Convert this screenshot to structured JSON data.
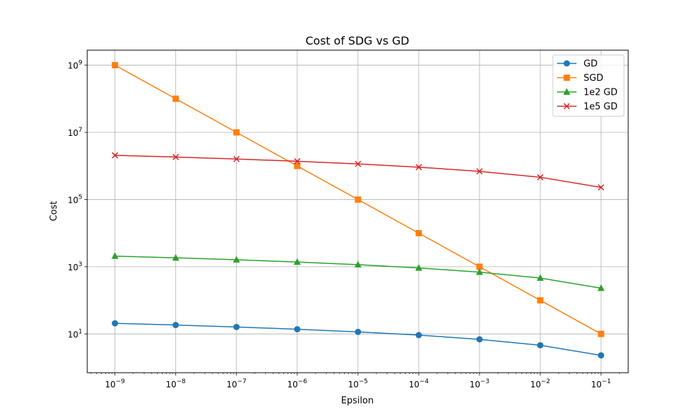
{
  "chart_data": {
    "type": "line",
    "title": "Cost of SDG vs GD",
    "xlabel": "Epsilon",
    "ylabel": "Cost",
    "xscale": "log",
    "yscale": "log",
    "grid": true,
    "legend_position": "top-right",
    "xlim": [
      3.5e-10,
      0.28
    ],
    "ylim": [
      0.7,
      2800000000.0
    ],
    "x": [
      1e-09,
      1e-08,
      1e-07,
      1e-06,
      1e-05,
      0.0001,
      0.001,
      0.01,
      0.1
    ],
    "xticks": [
      {
        "base": "10",
        "exp": "−9"
      },
      {
        "base": "10",
        "exp": "−8"
      },
      {
        "base": "10",
        "exp": "−7"
      },
      {
        "base": "10",
        "exp": "−6"
      },
      {
        "base": "10",
        "exp": "−5"
      },
      {
        "base": "10",
        "exp": "−4"
      },
      {
        "base": "10",
        "exp": "−3"
      },
      {
        "base": "10",
        "exp": "−2"
      },
      {
        "base": "10",
        "exp": "−1"
      }
    ],
    "yticks": [
      {
        "value": 10,
        "base": "10",
        "exp": "1"
      },
      {
        "value": 1000,
        "base": "10",
        "exp": "3"
      },
      {
        "value": 100000,
        "base": "10",
        "exp": "5"
      },
      {
        "value": 10000000,
        "base": "10",
        "exp": "7"
      },
      {
        "value": 1000000000,
        "base": "10",
        "exp": "9"
      }
    ],
    "series": [
      {
        "name": "GD",
        "color": "#1f77b4",
        "marker": "circle",
        "values": [
          20.7,
          18.4,
          16.1,
          13.8,
          11.5,
          9.2,
          6.9,
          4.6,
          2.3
        ]
      },
      {
        "name": "SGD",
        "color": "#ff7f0e",
        "marker": "square",
        "values": [
          1000000000,
          100000000,
          10000000,
          1000000,
          100000,
          10000,
          1000,
          100,
          10
        ]
      },
      {
        "name": "1e2 GD",
        "color": "#2ca02c",
        "marker": "triangle",
        "values": [
          2072,
          1842,
          1612,
          1382,
          1151,
          921,
          691,
          461,
          230
        ]
      },
      {
        "name": "1e5 GD",
        "color": "#d62728",
        "marker": "x",
        "values": [
          2072000,
          1842000,
          1612000,
          1382000,
          1151000,
          921000,
          691000,
          461000,
          230000
        ]
      }
    ]
  }
}
